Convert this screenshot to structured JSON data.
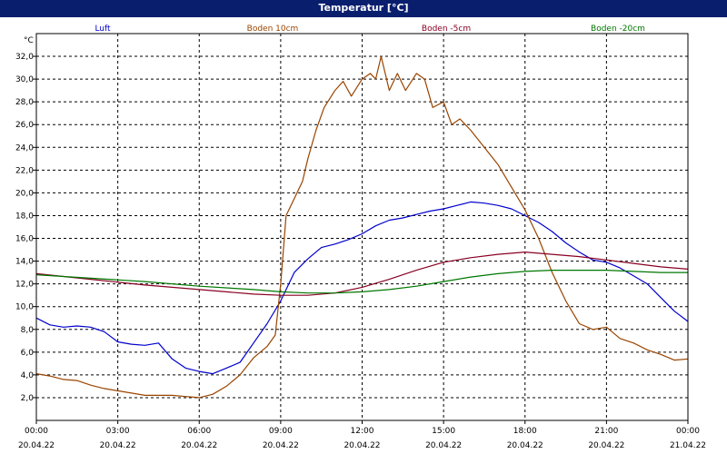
{
  "window": {
    "title": "Temperatur [°C]"
  },
  "chart_data": {
    "type": "line",
    "title": "Temperatur [°C]",
    "y_unit_label": "°C",
    "ylim": [
      0,
      34
    ],
    "y_ticks": [
      "2,0",
      "4,0",
      "6,0",
      "8,0",
      "10,0",
      "12,0",
      "14,0",
      "16,0",
      "18,0",
      "20,0",
      "22,0",
      "24,0",
      "26,0",
      "28,0",
      "30,0",
      "32,0"
    ],
    "y_tick_values": [
      2,
      4,
      6,
      8,
      10,
      12,
      14,
      16,
      18,
      20,
      22,
      24,
      26,
      28,
      30,
      32
    ],
    "xlim": [
      0,
      24
    ],
    "x_ticks": [
      {
        "h": 0,
        "time": "00:00",
        "date": "20.04.22"
      },
      {
        "h": 3,
        "time": "03:00",
        "date": "20.04.22"
      },
      {
        "h": 6,
        "time": "06:00",
        "date": "20.04.22"
      },
      {
        "h": 9,
        "time": "09:00",
        "date": "20.04.22"
      },
      {
        "h": 12,
        "time": "12:00",
        "date": "20.04.22"
      },
      {
        "h": 15,
        "time": "15:00",
        "date": "20.04.22"
      },
      {
        "h": 18,
        "time": "18:00",
        "date": "20.04.22"
      },
      {
        "h": 21,
        "time": "21:00",
        "date": "20.04.22"
      },
      {
        "h": 24,
        "time": "00:00",
        "date": "21.04.22"
      }
    ],
    "grid": true,
    "legend_position": "top",
    "series": [
      {
        "name": "Luft",
        "color": "#0000cc",
        "points": [
          [
            0,
            9.0
          ],
          [
            0.5,
            8.4
          ],
          [
            1,
            8.2
          ],
          [
            1.5,
            8.3
          ],
          [
            2,
            8.2
          ],
          [
            2.5,
            7.8
          ],
          [
            3,
            6.9
          ],
          [
            3.5,
            6.7
          ],
          [
            4,
            6.6
          ],
          [
            4.5,
            6.8
          ],
          [
            5,
            5.4
          ],
          [
            5.5,
            4.6
          ],
          [
            6,
            4.3
          ],
          [
            6.5,
            4.1
          ],
          [
            7,
            4.6
          ],
          [
            7.5,
            5.1
          ],
          [
            8,
            6.8
          ],
          [
            8.5,
            8.5
          ],
          [
            9,
            10.5
          ],
          [
            9.5,
            13.0
          ],
          [
            10,
            14.2
          ],
          [
            10.5,
            15.2
          ],
          [
            11,
            15.5
          ],
          [
            11.5,
            15.9
          ],
          [
            12,
            16.4
          ],
          [
            12.5,
            17.1
          ],
          [
            13,
            17.6
          ],
          [
            13.5,
            17.8
          ],
          [
            14,
            18.1
          ],
          [
            14.5,
            18.4
          ],
          [
            15,
            18.6
          ],
          [
            15.5,
            18.9
          ],
          [
            16,
            19.2
          ],
          [
            16.5,
            19.1
          ],
          [
            17,
            18.9
          ],
          [
            17.5,
            18.6
          ],
          [
            18,
            18.0
          ],
          [
            18.5,
            17.4
          ],
          [
            19,
            16.6
          ],
          [
            19.5,
            15.6
          ],
          [
            20,
            14.8
          ],
          [
            20.5,
            14.1
          ],
          [
            21,
            13.9
          ],
          [
            21.5,
            13.4
          ],
          [
            22,
            12.7
          ],
          [
            22.5,
            12.0
          ],
          [
            23,
            10.8
          ],
          [
            23.5,
            9.6
          ],
          [
            24,
            8.7
          ]
        ]
      },
      {
        "name": "Boden 10cm",
        "color": "#994400",
        "points": [
          [
            0,
            4.1
          ],
          [
            0.5,
            3.9
          ],
          [
            1,
            3.6
          ],
          [
            1.5,
            3.5
          ],
          [
            2,
            3.1
          ],
          [
            2.5,
            2.8
          ],
          [
            3,
            2.6
          ],
          [
            3.5,
            2.4
          ],
          [
            4,
            2.2
          ],
          [
            4.5,
            2.2
          ],
          [
            5,
            2.2
          ],
          [
            5.5,
            2.1
          ],
          [
            6,
            2.0
          ],
          [
            6.5,
            2.3
          ],
          [
            7,
            3.0
          ],
          [
            7.5,
            4.0
          ],
          [
            8,
            5.5
          ],
          [
            8.5,
            6.5
          ],
          [
            8.8,
            7.5
          ],
          [
            9,
            12.0
          ],
          [
            9.2,
            18.0
          ],
          [
            9.5,
            19.5
          ],
          [
            9.8,
            21.0
          ],
          [
            10,
            23.0
          ],
          [
            10.3,
            25.5
          ],
          [
            10.6,
            27.5
          ],
          [
            11,
            29.0
          ],
          [
            11.3,
            29.8
          ],
          [
            11.6,
            28.5
          ],
          [
            12,
            30.0
          ],
          [
            12.3,
            30.5
          ],
          [
            12.5,
            30.0
          ],
          [
            12.7,
            32.0
          ],
          [
            13,
            29.0
          ],
          [
            13.3,
            30.5
          ],
          [
            13.6,
            29.0
          ],
          [
            14,
            30.5
          ],
          [
            14.3,
            30.0
          ],
          [
            14.6,
            27.5
          ],
          [
            15,
            28.0
          ],
          [
            15.3,
            26.0
          ],
          [
            15.6,
            26.5
          ],
          [
            16,
            25.5
          ],
          [
            16.5,
            24.0
          ],
          [
            17,
            22.5
          ],
          [
            17.5,
            20.5
          ],
          [
            18,
            18.5
          ],
          [
            18.5,
            16.0
          ],
          [
            19,
            13.0
          ],
          [
            19.5,
            10.5
          ],
          [
            20,
            8.5
          ],
          [
            20.5,
            8.0
          ],
          [
            21,
            8.2
          ],
          [
            21.5,
            7.2
          ],
          [
            22,
            6.8
          ],
          [
            22.5,
            6.2
          ],
          [
            23,
            5.8
          ],
          [
            23.5,
            5.3
          ],
          [
            24,
            5.4
          ]
        ]
      },
      {
        "name": "Boden -5cm",
        "color": "#880022",
        "points": [
          [
            0,
            12.9
          ],
          [
            2,
            12.4
          ],
          [
            4,
            11.9
          ],
          [
            6,
            11.5
          ],
          [
            8,
            11.1
          ],
          [
            9,
            11.0
          ],
          [
            10,
            11.0
          ],
          [
            11,
            11.2
          ],
          [
            12,
            11.7
          ],
          [
            13,
            12.4
          ],
          [
            14,
            13.2
          ],
          [
            15,
            13.9
          ],
          [
            16,
            14.3
          ],
          [
            17,
            14.6
          ],
          [
            18,
            14.8
          ],
          [
            19,
            14.6
          ],
          [
            20,
            14.4
          ],
          [
            21,
            14.1
          ],
          [
            22,
            13.8
          ],
          [
            23,
            13.5
          ],
          [
            24,
            13.3
          ]
        ]
      },
      {
        "name": "Boden -20cm",
        "color": "#007700",
        "points": [
          [
            0,
            12.8
          ],
          [
            2,
            12.5
          ],
          [
            4,
            12.2
          ],
          [
            6,
            11.8
          ],
          [
            8,
            11.5
          ],
          [
            9,
            11.3
          ],
          [
            10,
            11.2
          ],
          [
            11,
            11.2
          ],
          [
            12,
            11.3
          ],
          [
            13,
            11.5
          ],
          [
            14,
            11.8
          ],
          [
            15,
            12.2
          ],
          [
            16,
            12.6
          ],
          [
            17,
            12.9
          ],
          [
            18,
            13.1
          ],
          [
            19,
            13.2
          ],
          [
            20,
            13.2
          ],
          [
            21,
            13.2
          ],
          [
            22,
            13.1
          ],
          [
            23,
            13.0
          ],
          [
            24,
            13.0
          ]
        ]
      }
    ]
  }
}
